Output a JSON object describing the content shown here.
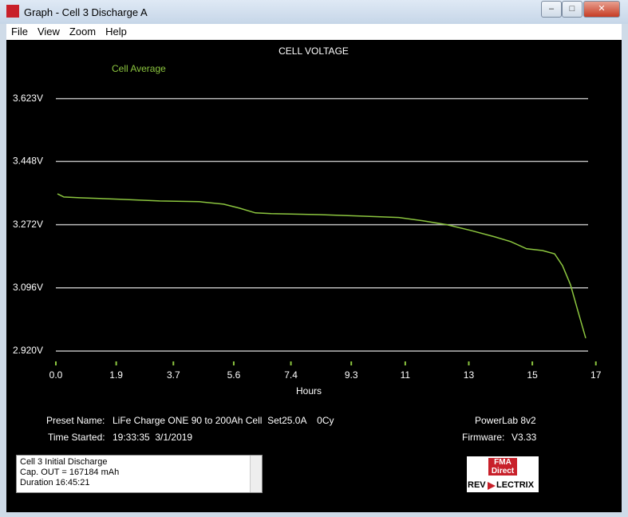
{
  "window": {
    "title": "Graph - Cell 3 Discharge A"
  },
  "menu": [
    "File",
    "View",
    "Zoom",
    "Help"
  ],
  "chart_data": {
    "type": "line",
    "title": "CELL VOLTAGE",
    "x_label": "Hours",
    "x": [
      0.05,
      0.25,
      0.75,
      2.01,
      3.27,
      4.52,
      5.28,
      5.78,
      6.28,
      6.78,
      8.29,
      9.55,
      10.8,
      11.56,
      12.31,
      13.06,
      13.82,
      14.32,
      14.82,
      15.32,
      15.7,
      15.95,
      16.2,
      16.45,
      16.68
    ],
    "series": [
      {
        "name": "Cell Average",
        "color": "#8cc63f",
        "values": [
          3.358,
          3.349,
          3.347,
          3.343,
          3.338,
          3.336,
          3.329,
          3.318,
          3.305,
          3.303,
          3.3,
          3.296,
          3.292,
          3.283,
          3.272,
          3.256,
          3.238,
          3.225,
          3.205,
          3.2,
          3.191,
          3.158,
          3.105,
          3.027,
          2.956
        ]
      }
    ],
    "xlim": [
      0,
      16.756
    ],
    "xticks": [
      {
        "value": 0,
        "label": "0.0"
      },
      1.9,
      3.7,
      5.6,
      7.4,
      9.3,
      11,
      13,
      15,
      17
    ],
    "ylim": [
      2.92,
      3.66
    ],
    "yticks": [
      {
        "value": 2.92,
        "label": "2.920V"
      },
      {
        "value": 3.096,
        "label": "3.096V"
      },
      {
        "value": 3.272,
        "label": "3.272V"
      },
      {
        "value": 3.448,
        "label": "3.448V"
      },
      {
        "value": 3.623,
        "label": "3.623V"
      }
    ],
    "grid": true
  },
  "info": {
    "preset_label": "Preset Name:",
    "preset_value": "LiFe Charge ONE 90 to 200Ah Cell  Set25.0A    0Cy",
    "time_label": "Time Started:",
    "time_value": "19:33:35  3/1/2019",
    "device": "PowerLab 8v2",
    "firmware_label": "Firmware:",
    "firmware_value": "V3.33"
  },
  "notes": [
    "Cell 3 Initial Discharge",
    "Cap. OUT = 167184 mAh",
    "Duration 16:45:21"
  ],
  "logo": {
    "top": "FMA",
    "middle": "Direct",
    "left": "REV",
    "right": "LECTRIX"
  }
}
